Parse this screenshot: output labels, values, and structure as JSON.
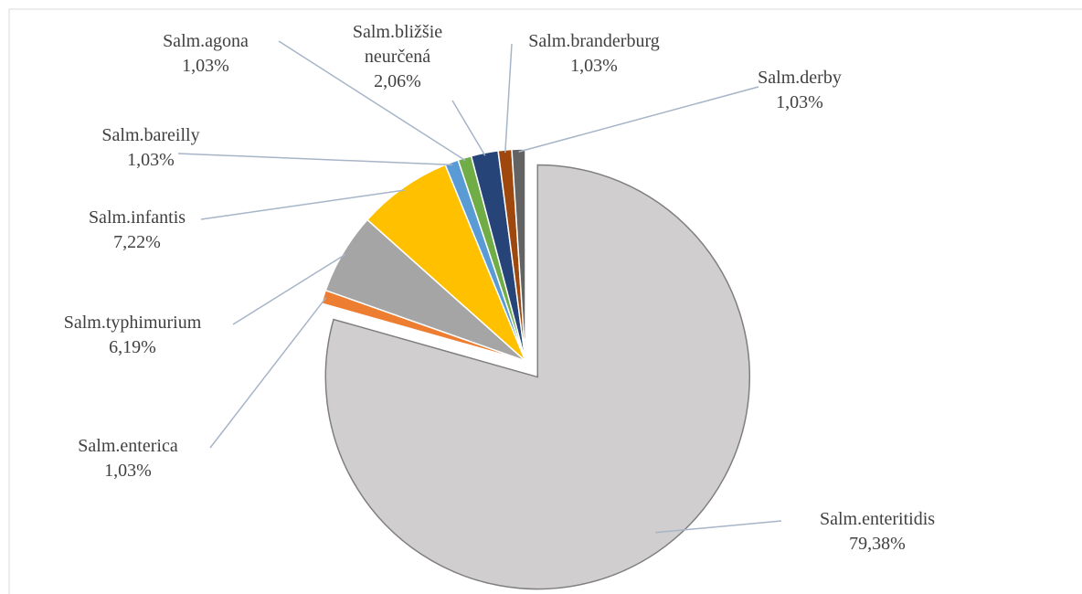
{
  "chart_data": {
    "type": "pie",
    "categories": [
      "Salm.enteritidis",
      "Salm.enterica",
      "Salm.typhimurium",
      "Salm.infantis",
      "Salm.bareilly",
      "Salm.agona",
      "Salm.bližšie neurčená",
      "Salm.branderburg",
      "Salm.derby"
    ],
    "values": [
      79.38,
      1.03,
      6.19,
      7.22,
      1.03,
      1.03,
      2.06,
      1.03,
      1.03
    ],
    "value_labels": [
      "79,38%",
      "1,03%",
      "6,19%",
      "7,22%",
      "1,03%",
      "1,03%",
      "2,06%",
      "1,03%",
      "1,03%"
    ],
    "colors": [
      "#d0cece",
      "#ed7d31",
      "#a5a5a5",
      "#ffc000",
      "#5b9bd5",
      "#70ad47",
      "#264478",
      "#9e480e",
      "#636363"
    ]
  }
}
